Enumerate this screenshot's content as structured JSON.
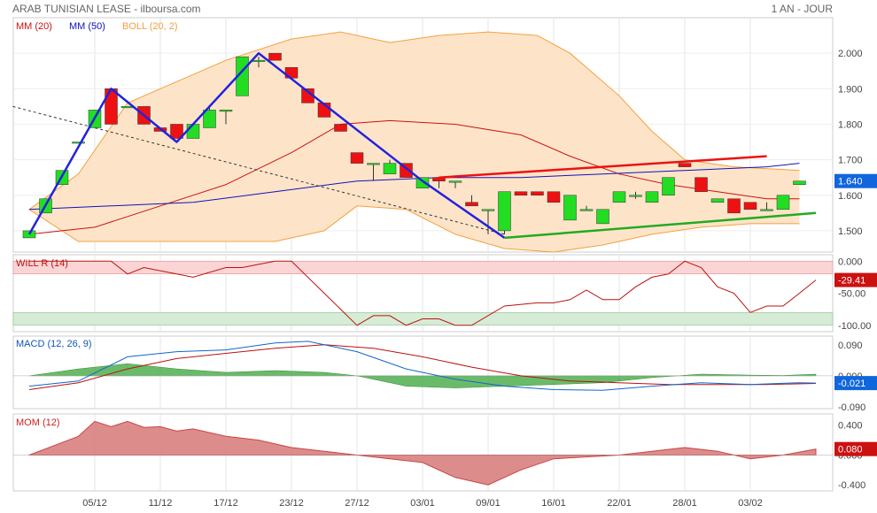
{
  "header": {
    "title": "ARAB TUNISIAN LEASE - ilboursa.com",
    "period": "1 AN - JOUR"
  },
  "colors": {
    "up": "#22dd22",
    "down": "#ee1111",
    "mm20": "#cc1111",
    "mm50": "#1111bb",
    "boll": "#f4a040",
    "boll_fill": "#fde4c8",
    "trend_blue": "#2222dd",
    "trend_red": "#ee1111",
    "trend_green": "#22aa22",
    "willr": "#bb1111",
    "macd": "#1166cc",
    "macd_signal": "#bb1111",
    "macd_hist": "#44aa44",
    "mom": "#cc4444",
    "badge_blue": "#1166dd",
    "badge_red": "#cc1111"
  },
  "chart_data": [
    {
      "type": "candlestick",
      "legend": [
        "MM (20)",
        "MM (50)",
        "BOLL (20, 2)"
      ],
      "x_tick_labels": [
        "05/12",
        "11/12",
        "17/12",
        "23/12",
        "27/12",
        "03/01",
        "09/01",
        "16/01",
        "22/01",
        "28/01",
        "03/02"
      ],
      "x_tick_index": [
        4,
        8,
        12,
        16,
        20,
        24,
        28,
        32,
        36,
        40,
        44
      ],
      "ylim": [
        1.44,
        2.1
      ],
      "yticks": [
        "1.500",
        "1.600",
        "1.700",
        "1.800",
        "1.900",
        "2.000"
      ],
      "last_value": "1.640",
      "candles": [
        {
          "o": 1.48,
          "h": 1.5,
          "l": 1.48,
          "c": 1.5
        },
        {
          "o": 1.55,
          "h": 1.59,
          "l": 1.55,
          "c": 1.59
        },
        {
          "o": 1.63,
          "h": 1.67,
          "l": 1.63,
          "c": 1.67
        },
        {
          "o": 1.75,
          "h": 1.75,
          "l": 1.75,
          "c": 1.75
        },
        {
          "o": 1.79,
          "h": 1.84,
          "l": 1.79,
          "c": 1.84
        },
        {
          "o": 1.9,
          "h": 1.9,
          "l": 1.8,
          "c": 1.8
        },
        {
          "o": 1.85,
          "h": 1.85,
          "l": 1.85,
          "c": 1.85
        },
        {
          "o": 1.85,
          "h": 1.85,
          "l": 1.8,
          "c": 1.8
        },
        {
          "o": 1.79,
          "h": 1.79,
          "l": 1.78,
          "c": 1.78
        },
        {
          "o": 1.8,
          "h": 1.8,
          "l": 1.76,
          "c": 1.76
        },
        {
          "o": 1.76,
          "h": 1.8,
          "l": 1.76,
          "c": 1.8
        },
        {
          "o": 1.79,
          "h": 1.85,
          "l": 1.79,
          "c": 1.84
        },
        {
          "o": 1.84,
          "h": 1.84,
          "l": 1.8,
          "c": 1.84
        },
        {
          "o": 1.88,
          "h": 1.99,
          "l": 1.88,
          "c": 1.99
        },
        {
          "o": 1.98,
          "h": 1.99,
          "l": 1.96,
          "c": 1.98
        },
        {
          "o": 2.0,
          "h": 2.0,
          "l": 1.98,
          "c": 1.98
        },
        {
          "o": 1.96,
          "h": 1.96,
          "l": 1.93,
          "c": 1.93
        },
        {
          "o": 1.9,
          "h": 1.9,
          "l": 1.86,
          "c": 1.86
        },
        {
          "o": 1.86,
          "h": 1.86,
          "l": 1.82,
          "c": 1.82
        },
        {
          "o": 1.8,
          "h": 1.8,
          "l": 1.78,
          "c": 1.78
        },
        {
          "o": 1.72,
          "h": 1.72,
          "l": 1.69,
          "c": 1.69
        },
        {
          "o": 1.69,
          "h": 1.69,
          "l": 1.64,
          "c": 1.69
        },
        {
          "o": 1.66,
          "h": 1.7,
          "l": 1.66,
          "c": 1.69
        },
        {
          "o": 1.69,
          "h": 1.69,
          "l": 1.65,
          "c": 1.65
        },
        {
          "o": 1.62,
          "h": 1.65,
          "l": 1.62,
          "c": 1.65
        },
        {
          "o": 1.65,
          "h": 1.65,
          "l": 1.62,
          "c": 1.64
        },
        {
          "o": 1.64,
          "h": 1.64,
          "l": 1.62,
          "c": 1.64
        },
        {
          "o": 1.58,
          "h": 1.6,
          "l": 1.57,
          "c": 1.57
        },
        {
          "o": 1.56,
          "h": 1.56,
          "l": 1.49,
          "c": 1.56
        },
        {
          "o": 1.5,
          "h": 1.61,
          "l": 1.49,
          "c": 1.61
        },
        {
          "o": 1.61,
          "h": 1.61,
          "l": 1.6,
          "c": 1.6
        },
        {
          "o": 1.61,
          "h": 1.61,
          "l": 1.6,
          "c": 1.6
        },
        {
          "o": 1.61,
          "h": 1.61,
          "l": 1.58,
          "c": 1.58
        },
        {
          "o": 1.53,
          "h": 1.6,
          "l": 1.53,
          "c": 1.6
        },
        {
          "o": 1.56,
          "h": 1.57,
          "l": 1.56,
          "c": 1.56
        },
        {
          "o": 1.52,
          "h": 1.56,
          "l": 1.52,
          "c": 1.56
        },
        {
          "o": 1.58,
          "h": 1.61,
          "l": 1.58,
          "c": 1.61
        },
        {
          "o": 1.6,
          "h": 1.61,
          "l": 1.59,
          "c": 1.6
        },
        {
          "o": 1.58,
          "h": 1.61,
          "l": 1.58,
          "c": 1.61
        },
        {
          "o": 1.6,
          "h": 1.65,
          "l": 1.6,
          "c": 1.65
        },
        {
          "o": 1.69,
          "h": 1.69,
          "l": 1.68,
          "c": 1.68
        },
        {
          "o": 1.65,
          "h": 1.65,
          "l": 1.61,
          "c": 1.61
        },
        {
          "o": 1.58,
          "h": 1.59,
          "l": 1.58,
          "c": 1.59
        },
        {
          "o": 1.59,
          "h": 1.59,
          "l": 1.55,
          "c": 1.55
        },
        {
          "o": 1.58,
          "h": 1.58,
          "l": 1.56,
          "c": 1.56
        },
        {
          "o": 1.56,
          "h": 1.58,
          "l": 1.56,
          "c": 1.56
        },
        {
          "o": 1.56,
          "h": 1.6,
          "l": 1.56,
          "c": 1.6
        },
        {
          "o": 1.63,
          "h": 1.64,
          "l": 1.63,
          "c": 1.64
        }
      ],
      "mm20": [
        [
          0,
          1.49
        ],
        [
          4,
          1.51
        ],
        [
          8,
          1.57
        ],
        [
          12,
          1.63
        ],
        [
          16,
          1.72
        ],
        [
          19,
          1.8
        ],
        [
          22,
          1.81
        ],
        [
          26,
          1.8
        ],
        [
          30,
          1.77
        ],
        [
          33,
          1.71
        ],
        [
          36,
          1.66
        ],
        [
          39,
          1.63
        ],
        [
          42,
          1.61
        ],
        [
          45,
          1.59
        ],
        [
          47,
          1.59
        ]
      ],
      "mm50": [
        [
          0,
          1.56
        ],
        [
          5,
          1.57
        ],
        [
          10,
          1.58
        ],
        [
          15,
          1.61
        ],
        [
          20,
          1.64
        ],
        [
          25,
          1.65
        ],
        [
          30,
          1.65
        ],
        [
          35,
          1.66
        ],
        [
          40,
          1.67
        ],
        [
          45,
          1.68
        ],
        [
          47,
          1.69
        ]
      ],
      "boll_upper": [
        [
          0,
          1.56
        ],
        [
          3,
          1.66
        ],
        [
          6,
          1.86
        ],
        [
          9,
          1.92
        ],
        [
          12,
          1.98
        ],
        [
          16,
          2.04
        ],
        [
          19,
          2.06
        ],
        [
          22,
          2.03
        ],
        [
          25,
          2.05
        ],
        [
          28,
          2.06
        ],
        [
          31,
          2.05
        ],
        [
          33,
          2.0
        ],
        [
          36,
          1.88
        ],
        [
          38,
          1.78
        ],
        [
          40,
          1.7
        ],
        [
          43,
          1.68
        ],
        [
          47,
          1.67
        ]
      ],
      "boll_lower": [
        [
          0,
          1.56
        ],
        [
          3,
          1.47
        ],
        [
          6,
          1.47
        ],
        [
          9,
          1.47
        ],
        [
          12,
          1.47
        ],
        [
          15,
          1.47
        ],
        [
          18,
          1.5
        ],
        [
          20,
          1.57
        ],
        [
          23,
          1.56
        ],
        [
          26,
          1.49
        ],
        [
          29,
          1.45
        ],
        [
          32,
          1.44
        ],
        [
          35,
          1.46
        ],
        [
          38,
          1.49
        ],
        [
          41,
          1.51
        ],
        [
          44,
          1.52
        ],
        [
          47,
          1.52
        ]
      ],
      "trend_blue": [
        [
          0,
          1.49
        ],
        [
          5,
          1.9
        ],
        [
          9,
          1.75
        ],
        [
          14,
          2.0
        ],
        [
          24,
          1.64
        ],
        [
          29,
          1.48
        ]
      ],
      "trend_dashed": [
        [
          -1,
          1.85
        ],
        [
          29,
          1.49
        ]
      ],
      "trend_red": [
        [
          25,
          1.65
        ],
        [
          45,
          1.71
        ]
      ],
      "trend_green": [
        [
          29,
          1.48
        ],
        [
          48,
          1.55
        ]
      ]
    },
    {
      "type": "line",
      "title": "WILL R (14)",
      "ylim": [
        -110,
        10
      ],
      "yticks": [
        "0.000",
        "-50.00",
        "-100.00"
      ],
      "last_value": "-29.41",
      "values": [
        [
          0,
          0
        ],
        [
          5,
          0
        ],
        [
          6,
          -20
        ],
        [
          7,
          -10
        ],
        [
          9,
          -20
        ],
        [
          10,
          -25
        ],
        [
          12,
          -10
        ],
        [
          13,
          -10
        ],
        [
          15,
          0
        ],
        [
          16,
          0
        ],
        [
          20,
          -100
        ],
        [
          21,
          -85
        ],
        [
          22,
          -85
        ],
        [
          23,
          -100
        ],
        [
          24,
          -90
        ],
        [
          25,
          -90
        ],
        [
          26,
          -100
        ],
        [
          27,
          -100
        ],
        [
          29,
          -70
        ],
        [
          31,
          -65
        ],
        [
          32,
          -65
        ],
        [
          33,
          -60
        ],
        [
          34,
          -45
        ],
        [
          35,
          -60
        ],
        [
          36,
          -60
        ],
        [
          37,
          -40
        ],
        [
          38,
          -25
        ],
        [
          39,
          -20
        ],
        [
          40,
          0
        ],
        [
          41,
          -10
        ],
        [
          42,
          -40
        ],
        [
          43,
          -50
        ],
        [
          44,
          -80
        ],
        [
          45,
          -70
        ],
        [
          46,
          -70
        ],
        [
          47,
          -50
        ],
        [
          48,
          -29.41
        ]
      ]
    },
    {
      "type": "line",
      "title": "MACD (12, 26, 9)",
      "ylim": [
        -0.095,
        0.115
      ],
      "yticks": [
        "0.090",
        "0.000",
        "-0.090"
      ],
      "last_value": "-0.021",
      "macd": [
        [
          0,
          -0.03
        ],
        [
          3,
          -0.015
        ],
        [
          6,
          0.055
        ],
        [
          9,
          0.07
        ],
        [
          12,
          0.075
        ],
        [
          15,
          0.095
        ],
        [
          17,
          0.1
        ],
        [
          20,
          0.07
        ],
        [
          23,
          0.02
        ],
        [
          26,
          -0.01
        ],
        [
          29,
          -0.03
        ],
        [
          32,
          -0.04
        ],
        [
          35,
          -0.042
        ],
        [
          38,
          -0.03
        ],
        [
          41,
          -0.02
        ],
        [
          44,
          -0.025
        ],
        [
          47,
          -0.02
        ],
        [
          48,
          -0.021
        ]
      ],
      "signal": [
        [
          0,
          -0.04
        ],
        [
          3,
          -0.02
        ],
        [
          6,
          0.02
        ],
        [
          9,
          0.05
        ],
        [
          12,
          0.065
        ],
        [
          15,
          0.08
        ],
        [
          18,
          0.09
        ],
        [
          21,
          0.08
        ],
        [
          24,
          0.055
        ],
        [
          27,
          0.025
        ],
        [
          30,
          0.0
        ],
        [
          33,
          -0.015
        ],
        [
          36,
          -0.02
        ],
        [
          39,
          -0.025
        ],
        [
          42,
          -0.025
        ],
        [
          45,
          -0.025
        ],
        [
          48,
          -0.022
        ]
      ],
      "histogram": [
        [
          0,
          0.0
        ],
        [
          3,
          0.02
        ],
        [
          6,
          0.035
        ],
        [
          9,
          0.02
        ],
        [
          12,
          0.01
        ],
        [
          15,
          0.015
        ],
        [
          18,
          0.01
        ],
        [
          20,
          0.0
        ],
        [
          23,
          -0.03
        ],
        [
          26,
          -0.035
        ],
        [
          29,
          -0.03
        ],
        [
          32,
          -0.025
        ],
        [
          35,
          -0.02
        ],
        [
          38,
          -0.005
        ],
        [
          41,
          0.005
        ],
        [
          44,
          0.002
        ],
        [
          46,
          0.001
        ],
        [
          48,
          0.005
        ]
      ]
    },
    {
      "type": "area",
      "title": "MOM (12)",
      "ylim": [
        -0.48,
        0.55
      ],
      "yticks": [
        "0.400",
        "0.000",
        "-0.400"
      ],
      "last_value": "0.080",
      "values": [
        [
          0,
          0.0
        ],
        [
          3,
          0.25
        ],
        [
          4,
          0.45
        ],
        [
          5,
          0.38
        ],
        [
          6,
          0.45
        ],
        [
          7,
          0.37
        ],
        [
          8,
          0.38
        ],
        [
          9,
          0.32
        ],
        [
          10,
          0.35
        ],
        [
          12,
          0.25
        ],
        [
          14,
          0.2
        ],
        [
          16,
          0.1
        ],
        [
          18,
          0.05
        ],
        [
          20,
          0.0
        ],
        [
          22,
          -0.05
        ],
        [
          24,
          -0.1
        ],
        [
          26,
          -0.3
        ],
        [
          28,
          -0.4
        ],
        [
          30,
          -0.2
        ],
        [
          32,
          -0.05
        ],
        [
          36,
          0.0
        ],
        [
          38,
          0.05
        ],
        [
          40,
          0.1
        ],
        [
          42,
          0.05
        ],
        [
          44,
          -0.05
        ],
        [
          46,
          0.0
        ],
        [
          48,
          0.08
        ]
      ]
    }
  ]
}
